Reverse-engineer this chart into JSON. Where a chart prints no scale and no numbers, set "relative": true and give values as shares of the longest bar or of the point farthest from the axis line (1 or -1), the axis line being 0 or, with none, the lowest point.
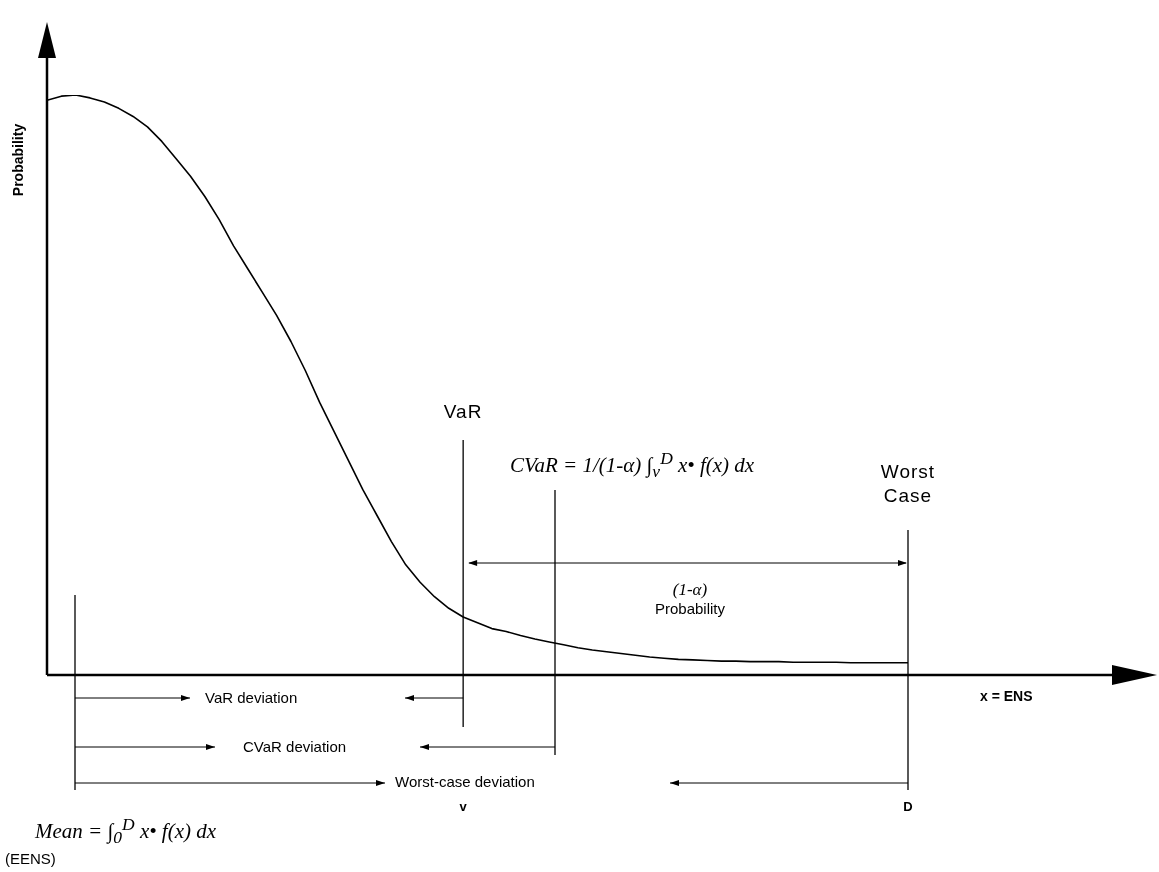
{
  "chart_data": {
    "type": "line",
    "relative": true,
    "ylabel": "Probability",
    "xlabel": "x = ENS",
    "marker": "none",
    "line_style": "solid",
    "categories": [
      null,
      null,
      null,
      null,
      null,
      null,
      null,
      null,
      null,
      null,
      null,
      null,
      null,
      null,
      null,
      null,
      null,
      null,
      null,
      null,
      null,
      null,
      null,
      null,
      null,
      null,
      null,
      null,
      null,
      "v",
      null,
      null,
      null,
      null,
      null,
      null,
      null,
      null,
      null,
      null,
      null,
      null,
      null,
      null,
      null,
      null,
      null,
      null,
      null,
      null,
      null,
      null,
      null,
      null,
      null,
      null,
      null,
      null,
      null,
      null,
      "D"
    ],
    "series": [
      {
        "color": "#000000",
        "values": [
          0.991,
          0.998,
          1,
          0.995,
          0.988,
          0.977,
          0.963,
          0.945,
          0.92,
          0.89,
          0.86,
          0.825,
          0.785,
          0.74,
          0.7,
          0.66,
          0.62,
          0.575,
          0.525,
          0.47,
          0.42,
          0.37,
          0.32,
          0.275,
          0.23,
          0.19,
          0.16,
          0.135,
          0.115,
          0.1,
          0.09,
          0.08,
          0.075,
          0.068,
          0.062,
          0.057,
          0.052,
          0.047,
          0.043,
          0.04,
          0.037,
          0.034,
          0.031,
          0.029,
          0.027,
          0.026,
          0.025,
          0.024,
          0.024,
          0.023,
          0.023,
          0.023,
          0.022,
          0.022,
          0.022,
          0.022,
          0.021,
          0.021,
          0.021,
          0.021,
          0.021
        ]
      }
    ],
    "ref_lines": [
      {
        "axis": "x",
        "value": "v",
        "label": "VaR"
      },
      {
        "axis": "x",
        "value": "D",
        "label": "Worst Case"
      }
    ],
    "annotations": [
      "(1-α)",
      "Probability",
      "VaR deviation",
      "CVaR deviation",
      "Worst-case deviation",
      "CVaR = 1/(1-α) ∫$_{v}$$^{D}$ x• f(x) dx",
      "Mean = ∫$_{0}$$^{D}$ x• f(x) dx",
      "(EENS)"
    ]
  }
}
